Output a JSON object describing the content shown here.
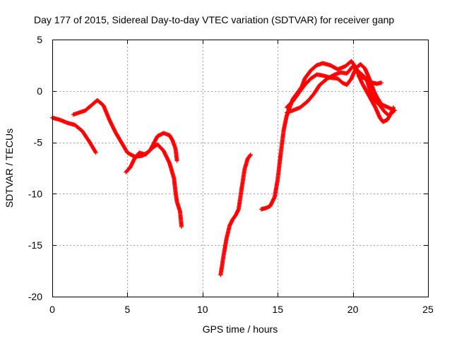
{
  "chart_data": {
    "type": "scatter",
    "title": "Day 177 of 2015, Sidereal Day-to-day VTEC variation (SDTVAR) for receiver ganp",
    "xlabel": "GPS time / hours",
    "ylabel": "SDTVAR / TECUs",
    "xlim": [
      0,
      25
    ],
    "ylim": [
      -20,
      5
    ],
    "xticks": [
      0,
      5,
      10,
      15,
      20,
      25
    ],
    "yticks": [
      -20,
      -15,
      -10,
      -5,
      0,
      5
    ],
    "xtick_labels": [
      "0",
      "5",
      "10",
      "15",
      "20",
      "25"
    ],
    "ytick_labels": [
      "-20",
      "-15",
      "-10",
      "-5",
      "0",
      "5"
    ],
    "grid": true,
    "marker": "plus",
    "color": "#ff0000",
    "series": [
      {
        "points": [
          [
            0.0,
            -2.6
          ],
          [
            0.5,
            -2.8
          ],
          [
            1.0,
            -3.1
          ],
          [
            1.5,
            -3.3
          ],
          [
            2.0,
            -3.9
          ],
          [
            2.5,
            -5.0
          ],
          [
            2.9,
            -6.0
          ]
        ]
      },
      {
        "points": [
          [
            1.4,
            -2.3
          ],
          [
            1.8,
            -2.1
          ],
          [
            2.2,
            -1.9
          ],
          [
            2.6,
            -1.4
          ],
          [
            3.0,
            -0.9
          ],
          [
            3.4,
            -1.4
          ],
          [
            3.8,
            -2.8
          ],
          [
            4.2,
            -4.0
          ],
          [
            4.6,
            -5.0
          ],
          [
            5.0,
            -6.0
          ],
          [
            5.5,
            -6.4
          ],
          [
            6.0,
            -6.3
          ],
          [
            6.5,
            -5.8
          ],
          [
            7.0,
            -4.4
          ],
          [
            7.4,
            -4.1
          ],
          [
            7.8,
            -4.3
          ],
          [
            8.0,
            -4.8
          ],
          [
            8.2,
            -5.6
          ],
          [
            8.3,
            -6.8
          ]
        ]
      },
      {
        "points": [
          [
            4.9,
            -7.9
          ],
          [
            5.2,
            -7.4
          ],
          [
            5.5,
            -6.5
          ],
          [
            5.8,
            -6.0
          ],
          [
            6.2,
            -6.2
          ],
          [
            6.6,
            -5.6
          ],
          [
            7.0,
            -5.2
          ],
          [
            7.4,
            -5.8
          ],
          [
            7.8,
            -7.0
          ],
          [
            8.1,
            -8.5
          ],
          [
            8.2,
            -9.8
          ],
          [
            8.3,
            -10.8
          ],
          [
            8.5,
            -11.7
          ],
          [
            8.6,
            -13.2
          ]
        ]
      },
      {
        "points": [
          [
            11.2,
            -17.9
          ],
          [
            11.4,
            -16.0
          ],
          [
            11.6,
            -14.3
          ],
          [
            11.8,
            -13.1
          ],
          [
            12.0,
            -12.5
          ],
          [
            12.2,
            -12.1
          ],
          [
            12.4,
            -11.5
          ],
          [
            12.6,
            -9.5
          ],
          [
            12.8,
            -7.6
          ],
          [
            13.0,
            -6.6
          ],
          [
            13.2,
            -6.2
          ]
        ]
      },
      {
        "points": [
          [
            13.9,
            -11.5
          ],
          [
            14.2,
            -11.4
          ],
          [
            14.5,
            -11.2
          ],
          [
            14.8,
            -10.3
          ],
          [
            15.0,
            -8.6
          ],
          [
            15.2,
            -6.1
          ],
          [
            15.4,
            -3.8
          ],
          [
            15.6,
            -2.4
          ],
          [
            15.8,
            -1.6
          ],
          [
            16.0,
            -0.8
          ],
          [
            16.3,
            -0.2
          ],
          [
            16.6,
            0.4
          ],
          [
            16.8,
            1.2
          ],
          [
            17.2,
            2.0
          ],
          [
            17.6,
            2.5
          ],
          [
            18.0,
            2.7
          ],
          [
            18.5,
            2.5
          ],
          [
            19.0,
            2.1
          ],
          [
            19.5,
            2.4
          ],
          [
            19.9,
            2.9
          ],
          [
            20.2,
            2.3
          ],
          [
            20.4,
            1.5
          ],
          [
            20.6,
            0.8
          ],
          [
            20.9,
            0.0
          ],
          [
            21.2,
            -0.8
          ],
          [
            21.5,
            -1.6
          ],
          [
            21.8,
            -2.6
          ],
          [
            22.0,
            -3.0
          ],
          [
            22.3,
            -2.8
          ],
          [
            22.6,
            -2.0
          ],
          [
            22.7,
            -1.6
          ]
        ]
      },
      {
        "points": [
          [
            15.6,
            -2.1
          ],
          [
            16.0,
            -1.9
          ],
          [
            16.5,
            -1.6
          ],
          [
            17.0,
            -1.0
          ],
          [
            17.4,
            -0.3
          ],
          [
            17.8,
            0.6
          ],
          [
            18.3,
            1.2
          ],
          [
            18.8,
            1.6
          ],
          [
            19.2,
            1.8
          ],
          [
            19.6,
            1.7
          ],
          [
            20.0,
            2.4
          ],
          [
            20.3,
            2.0
          ],
          [
            20.6,
            1.6
          ],
          [
            20.9,
            1.2
          ],
          [
            21.2,
            -0.2
          ],
          [
            21.5,
            -1.0
          ],
          [
            21.8,
            -1.4
          ],
          [
            22.1,
            -2.0
          ],
          [
            22.4,
            -2.4
          ],
          [
            22.7,
            -2.0
          ]
        ]
      },
      {
        "points": [
          [
            15.6,
            -1.6
          ],
          [
            16.0,
            -1.0
          ],
          [
            16.4,
            -0.2
          ],
          [
            16.8,
            0.6
          ],
          [
            17.2,
            1.2
          ],
          [
            17.6,
            1.6
          ],
          [
            18.0,
            1.5
          ],
          [
            18.5,
            1.3
          ],
          [
            19.0,
            1.2
          ],
          [
            19.3,
            0.8
          ],
          [
            19.6,
            0.6
          ],
          [
            19.9,
            1.2
          ],
          [
            20.2,
            2.2
          ],
          [
            20.5,
            2.6
          ],
          [
            20.8,
            2.2
          ],
          [
            21.1,
            1.2
          ],
          [
            21.4,
            0.0
          ],
          [
            21.6,
            -0.6
          ],
          [
            21.9,
            -1.3
          ],
          [
            22.2,
            -1.5
          ],
          [
            22.5,
            -1.7
          ],
          [
            22.8,
            -1.9
          ]
        ]
      },
      {
        "points": [
          [
            20.4,
            1.4
          ],
          [
            20.7,
            1.3
          ],
          [
            21.0,
            1.0
          ],
          [
            21.3,
            0.8
          ],
          [
            21.6,
            0.7
          ],
          [
            21.9,
            0.8
          ]
        ]
      }
    ]
  }
}
